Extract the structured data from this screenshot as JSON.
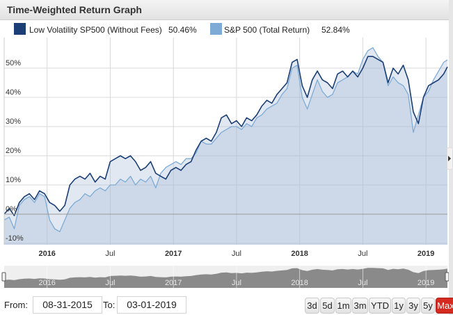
{
  "header": {
    "title": "Time-Weighted Return Graph"
  },
  "legend": [
    {
      "name": "Low Volatility SP500 (Without Fees)",
      "value": "50.46%",
      "color": "#1b3f75"
    },
    {
      "name": "S&P 500 (Total Return)",
      "value": "52.84%",
      "color": "#7eabd6"
    }
  ],
  "controls": {
    "from_label": "From:",
    "from_value": "08-31-2015",
    "to_label": "To:",
    "to_value": "03-01-2019",
    "range_buttons": [
      "3d",
      "5d",
      "1m",
      "3m",
      "YTD",
      "1y",
      "3y",
      "5y",
      "Max"
    ],
    "active_range": "Max",
    "active_color": "#d42a1f"
  },
  "navigator": {
    "labels": [
      "2016",
      "Jul",
      "2017",
      "Jul",
      "2018",
      "Jul",
      "2019"
    ]
  },
  "chart_data": {
    "type": "area",
    "title": "Time-Weighted Return Graph",
    "xlabel": "",
    "ylabel": "",
    "ylim": [
      -10,
      58
    ],
    "yticks": [
      "-10%",
      "0%",
      "10%",
      "20%",
      "30%",
      "40%",
      "50%"
    ],
    "ytick_values": [
      -10,
      0,
      10,
      20,
      30,
      40,
      50
    ],
    "xticks": [
      {
        "label": "2016",
        "t": 2016.0,
        "bold": true
      },
      {
        "label": "Jul",
        "t": 2016.5,
        "bold": false
      },
      {
        "label": "2017",
        "t": 2017.0,
        "bold": true
      },
      {
        "label": "Jul",
        "t": 2017.5,
        "bold": false
      },
      {
        "label": "2018",
        "t": 2018.0,
        "bold": true
      },
      {
        "label": "Jul",
        "t": 2018.5,
        "bold": false
      },
      {
        "label": "2019",
        "t": 2019.0,
        "bold": true
      }
    ],
    "xrange": [
      2015.66,
      2019.17
    ],
    "grid": true,
    "legend_position": "top",
    "series": [
      {
        "name": "Low Volatility SP500 (Without Fees)",
        "color": "#1b3f75",
        "x": [
          2015.66,
          2015.7,
          2015.74,
          2015.78,
          2015.82,
          2015.86,
          2015.9,
          2015.94,
          2015.98,
          2016.02,
          2016.06,
          2016.1,
          2016.14,
          2016.18,
          2016.22,
          2016.26,
          2016.3,
          2016.34,
          2016.38,
          2016.42,
          2016.46,
          2016.5,
          2016.54,
          2016.58,
          2016.62,
          2016.66,
          2016.7,
          2016.74,
          2016.78,
          2016.82,
          2016.86,
          2016.9,
          2016.94,
          2016.98,
          2017.02,
          2017.06,
          2017.1,
          2017.14,
          2017.18,
          2017.22,
          2017.26,
          2017.3,
          2017.34,
          2017.38,
          2017.42,
          2017.46,
          2017.5,
          2017.54,
          2017.58,
          2017.62,
          2017.66,
          2017.7,
          2017.74,
          2017.78,
          2017.82,
          2017.86,
          2017.9,
          2017.94,
          2017.98,
          2018.02,
          2018.06,
          2018.1,
          2018.14,
          2018.18,
          2018.22,
          2018.26,
          2018.3,
          2018.34,
          2018.38,
          2018.42,
          2018.46,
          2018.5,
          2018.54,
          2018.58,
          2018.62,
          2018.66,
          2018.7,
          2018.74,
          2018.78,
          2018.82,
          2018.86,
          2018.9,
          2018.94,
          2018.98,
          2019.02,
          2019.06,
          2019.1,
          2019.14,
          2019.17
        ],
        "values": [
          0,
          2,
          -0.5,
          4,
          6,
          7,
          5,
          8,
          7,
          4,
          3,
          1,
          3,
          10,
          12,
          13,
          12,
          14,
          11,
          13,
          12,
          18,
          19,
          20,
          19,
          20,
          18,
          15,
          16,
          18,
          14,
          13,
          12,
          15,
          16,
          15,
          17,
          18,
          22,
          25,
          26,
          25,
          28,
          33,
          34,
          31,
          32,
          30,
          33,
          32,
          34,
          37,
          39,
          38,
          41,
          43,
          45,
          52,
          53,
          44,
          40,
          46,
          49,
          46,
          45,
          43,
          48,
          49,
          47,
          49,
          47,
          50,
          54,
          54,
          53,
          52,
          45,
          50,
          48,
          51,
          46,
          35,
          31,
          40,
          44,
          45,
          46,
          48,
          50.46
        ]
      },
      {
        "name": "S&P 500 (Total Return)",
        "color": "#7eabd6",
        "x": [
          2015.66,
          2015.7,
          2015.74,
          2015.78,
          2015.82,
          2015.86,
          2015.9,
          2015.94,
          2015.98,
          2016.02,
          2016.06,
          2016.1,
          2016.14,
          2016.18,
          2016.22,
          2016.26,
          2016.3,
          2016.34,
          2016.38,
          2016.42,
          2016.46,
          2016.5,
          2016.54,
          2016.58,
          2016.62,
          2016.66,
          2016.7,
          2016.74,
          2016.78,
          2016.82,
          2016.86,
          2016.9,
          2016.94,
          2016.98,
          2017.02,
          2017.06,
          2017.1,
          2017.14,
          2017.18,
          2017.22,
          2017.26,
          2017.3,
          2017.34,
          2017.38,
          2017.42,
          2017.46,
          2017.5,
          2017.54,
          2017.58,
          2017.62,
          2017.66,
          2017.7,
          2017.74,
          2017.78,
          2017.82,
          2017.86,
          2017.9,
          2017.94,
          2017.98,
          2018.02,
          2018.06,
          2018.1,
          2018.14,
          2018.18,
          2018.22,
          2018.26,
          2018.3,
          2018.34,
          2018.38,
          2018.42,
          2018.46,
          2018.5,
          2018.54,
          2018.58,
          2018.62,
          2018.66,
          2018.7,
          2018.74,
          2018.78,
          2018.82,
          2018.86,
          2018.9,
          2018.94,
          2018.98,
          2019.02,
          2019.06,
          2019.1,
          2019.14,
          2019.17
        ],
        "values": [
          -2,
          -1,
          -5,
          3,
          5,
          6,
          4,
          7,
          6,
          -2,
          -5,
          -6,
          -2,
          2,
          4,
          5,
          7,
          6,
          8,
          9,
          8,
          10,
          10,
          12,
          11,
          13,
          10,
          12,
          11,
          13,
          9,
          14,
          16,
          17,
          18,
          17,
          19,
          19,
          21,
          25,
          24,
          24,
          26,
          28,
          29,
          30,
          30,
          29,
          31,
          30,
          33,
          34,
          36,
          37,
          38,
          41,
          43,
          50,
          51,
          40,
          36,
          41,
          46,
          42,
          40,
          41,
          45,
          46,
          47,
          49,
          48,
          53,
          56,
          57,
          54,
          52,
          44,
          47,
          45,
          44,
          41,
          28,
          34,
          40,
          42,
          46,
          49,
          52,
          52.84
        ]
      }
    ]
  }
}
